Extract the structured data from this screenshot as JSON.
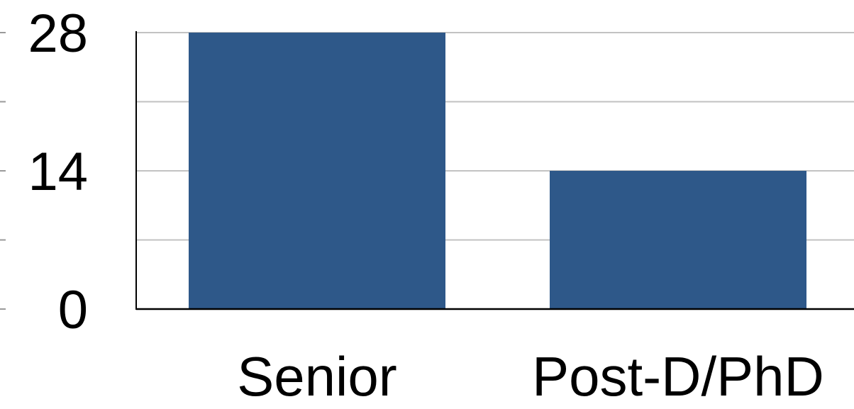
{
  "chart_data": {
    "type": "bar",
    "categories": [
      "Senior",
      "Post-D/PhD"
    ],
    "values": [
      28,
      14
    ],
    "ylim": [
      0,
      28
    ],
    "yticks": [
      0,
      14,
      28
    ],
    "yminor_ticks": [
      7,
      21
    ],
    "grid": true,
    "bar_color": "#2e5889",
    "grid_color": "#c2c2c2",
    "axis_color": "#000000"
  }
}
